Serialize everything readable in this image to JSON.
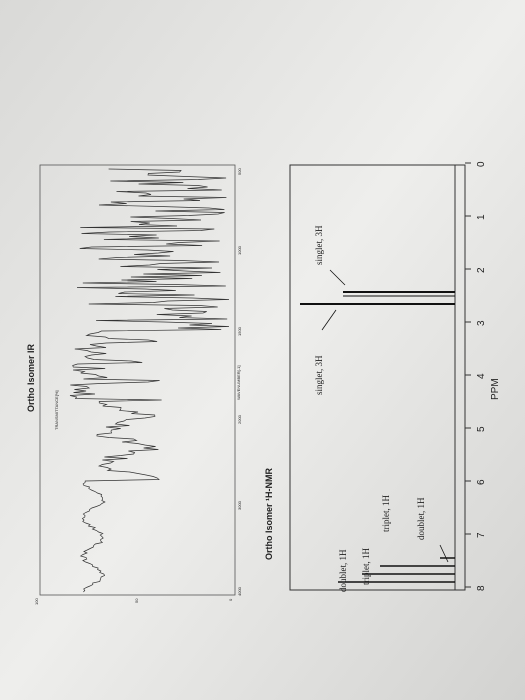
{
  "ir": {
    "title": "Ortho Isomer IR",
    "y_axis_label": "TRANSMITTANCE[%]",
    "x_axis_label": "WAVENUMBER[-1]",
    "yticks": [
      "100",
      "50",
      "0"
    ],
    "xticks": [
      "4000",
      "3000",
      "2000",
      "1500",
      "1000",
      "500"
    ]
  },
  "nmr": {
    "title": "Ortho Isomer ¹H-NMR",
    "x_axis_label": "PPM",
    "xticks": [
      "8",
      "7",
      "6",
      "5",
      "4",
      "3",
      "2",
      "1",
      "0"
    ],
    "peak_labels": [
      "singlet, 3H",
      "singlet, 3H",
      "doublet, 1H",
      "triplet, 1H",
      "triplet, 1H",
      "doublet, 1H"
    ]
  }
}
